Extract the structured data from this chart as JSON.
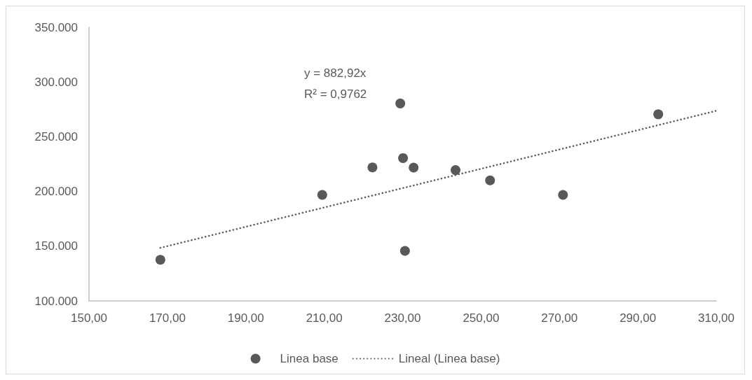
{
  "chart_data": {
    "type": "scatter",
    "marker": "circle",
    "grid": false,
    "legend": "bottom",
    "xlim": [
      150,
      310
    ],
    "ylim": [
      100000,
      350000
    ],
    "xticks": [
      {
        "value": 150,
        "label": "150,00"
      },
      {
        "value": 170,
        "label": "170,00"
      },
      {
        "value": 190,
        "label": "190,00"
      },
      {
        "value": 210,
        "label": "210,00"
      },
      {
        "value": 230,
        "label": "230,00"
      },
      {
        "value": 250,
        "label": "250,00"
      },
      {
        "value": 270,
        "label": "270,00"
      },
      {
        "value": 290,
        "label": "290,00"
      },
      {
        "value": 310,
        "label": "310,00"
      }
    ],
    "yticks": [
      {
        "value": 100000,
        "label": "100.000"
      },
      {
        "value": 150000,
        "label": "150.000"
      },
      {
        "value": 200000,
        "label": "200.000"
      },
      {
        "value": 250000,
        "label": "250.000"
      },
      {
        "value": 300000,
        "label": "300.000"
      },
      {
        "value": 350000,
        "label": "350.000"
      }
    ],
    "annotations": [
      "y = 882,92x\nR² = 0,9762"
    ],
    "series": [
      {
        "name": "Linea base",
        "color": "#595959",
        "x": [
          168.2,
          209.5,
          222.3,
          229.4,
          230.1,
          232.8,
          230.6,
          243.5,
          252.3,
          270.9,
          295.2
        ],
        "values": [
          137600,
          196900,
          222000,
          280400,
          230500,
          221800,
          145700,
          219500,
          210100,
          196900,
          270500
        ]
      },
      {
        "name": "Lineal (Linea base)",
        "type": "line",
        "color": "#595959",
        "line_style": "dotted",
        "marker": "none",
        "x": [
          168.2,
          310
        ],
        "values": [
          148500,
          273700
        ]
      }
    ]
  }
}
